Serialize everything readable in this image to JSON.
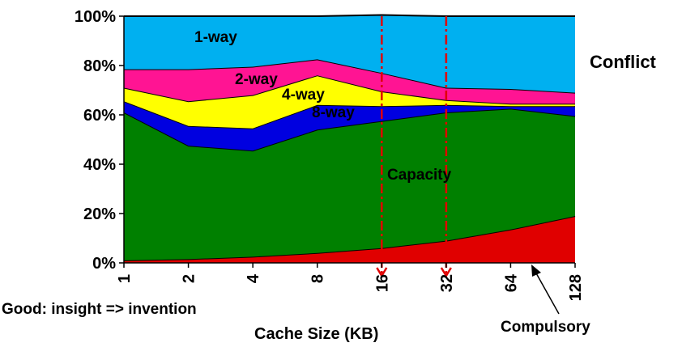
{
  "chart_data": {
    "type": "area",
    "stacking": "percent",
    "categories": [
      "1",
      "2",
      "4",
      "8",
      "16",
      "32",
      "64",
      "128"
    ],
    "xlabel": "Cache Size (KB)",
    "ylabel": "",
    "ylim": [
      0,
      100
    ],
    "yticks": [
      "0%",
      "20%",
      "40%",
      "60%",
      "80%",
      "100%"
    ],
    "series": [
      {
        "name": "Compulsory",
        "color": "#e00000",
        "values": [
          1,
          1.5,
          2.5,
          4,
          6,
          9,
          13.5,
          19
        ]
      },
      {
        "name": "Capacity",
        "color": "#008000",
        "values": [
          60,
          46,
          43,
          50,
          51.5,
          52,
          49,
          40.5
        ]
      },
      {
        "name": "8-way",
        "color": "#0000e0",
        "values": [
          4.5,
          8,
          9,
          10,
          6,
          3,
          1,
          4
        ]
      },
      {
        "name": "4-way",
        "color": "#ffff00",
        "values": [
          5.5,
          10,
          13.5,
          12,
          6,
          2,
          1,
          1
        ]
      },
      {
        "name": "2-way",
        "color": "#ff1493",
        "values": [
          7.5,
          13,
          11.5,
          6.5,
          7.5,
          5,
          6,
          4.5
        ]
      },
      {
        "name": "1-way",
        "color": "#00b0f0",
        "values": [
          21.5,
          21.5,
          20.5,
          17.5,
          23.5,
          29,
          29.5,
          31
        ]
      }
    ],
    "markers": {
      "categories": [
        "16",
        "32"
      ],
      "color": "#e00000",
      "style": "dash-dot-arrow"
    },
    "annotations": {
      "conflict": "Conflict",
      "capacity": "Capacity",
      "compulsory": "Compulsory",
      "one_way": "1-way",
      "two_way": "2-way",
      "four_way": "4-way",
      "eight_way": "8-way",
      "note": "Good: insight => invention"
    }
  }
}
